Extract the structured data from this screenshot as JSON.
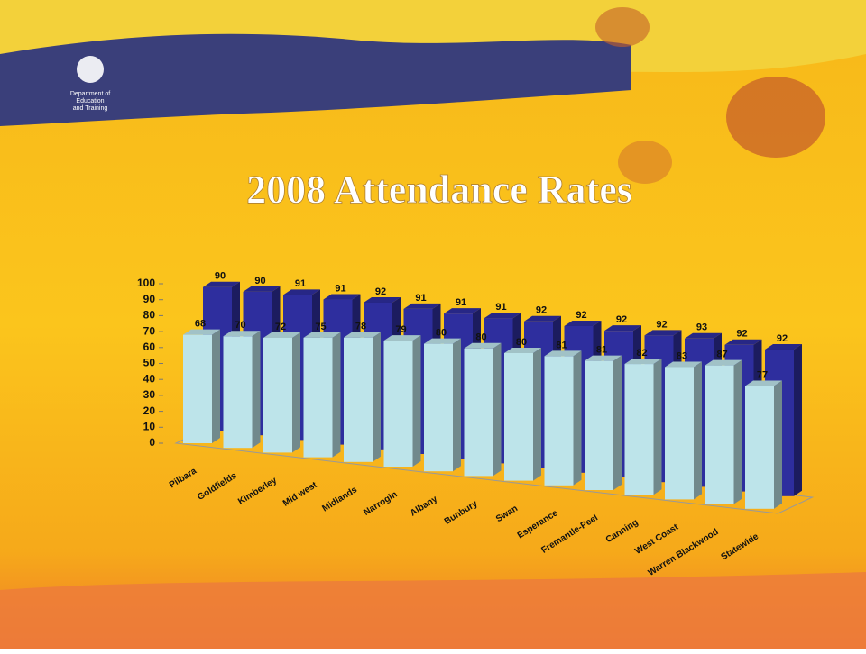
{
  "logo": {
    "line1": "Department of",
    "line2": "Education",
    "line3": "and Training"
  },
  "chart_data": {
    "type": "bar3d",
    "title": "2008 Attendance Rates",
    "categories": [
      "Pilbara",
      "Goldfields",
      "Kimberley",
      "Mid west",
      "Midlands",
      "Narrogin",
      "Albany",
      "Bunbury",
      "Swan",
      "Esperance",
      "Fremantle-Peel",
      "Canning",
      "West Coast",
      "Warren Blackwood",
      "Statewide"
    ],
    "series": [
      {
        "color": "#2e2e9e",
        "values": [
          90,
          90,
          91,
          91,
          92,
          91,
          91,
          91,
          92,
          92,
          92,
          92,
          93,
          92,
          92
        ]
      },
      {
        "color": "#bde4ea",
        "values": [
          68,
          70,
          72,
          75,
          78,
          79,
          80,
          80,
          80,
          81,
          81,
          82,
          83,
          87,
          77
        ]
      }
    ],
    "ylim": [
      0,
      100
    ],
    "yticks": [
      0,
      10,
      20,
      30,
      40,
      50,
      60,
      70,
      80,
      90,
      100
    ],
    "grid": false
  }
}
